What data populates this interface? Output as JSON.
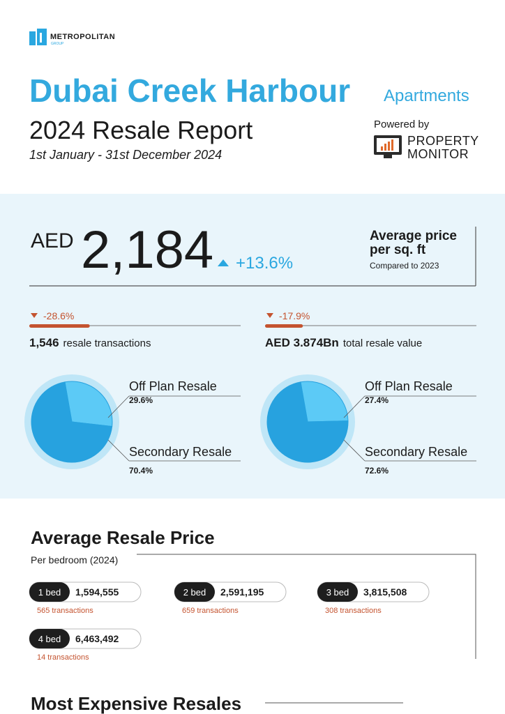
{
  "header": {
    "logo": "METROPOLITAN",
    "logo_sub": "GROUP",
    "title": "Dubai Creek Harbour",
    "tag": "Apartments",
    "report": "2024 Resale Report",
    "period": "1st January - 31st December 2024",
    "powered_by": "Powered by",
    "partner": [
      "PROPERTY",
      "MONITOR"
    ]
  },
  "price": {
    "currency": "AED",
    "value": "2,184",
    "change": "+13.6%",
    "label": [
      "Average price",
      "per sq. ft"
    ],
    "note": "Compared to 2023"
  },
  "stats": [
    {
      "change": {
        "value": -28.6,
        "label": "-28.6%"
      },
      "value": "1,546",
      "label": "resale transactions"
    },
    {
      "change": {
        "value": -17.9,
        "label": "-17.9%"
      },
      "value": "AED 3.874Bn",
      "label": "total resale value"
    }
  ],
  "pies": [
    {
      "labels": [
        "Off Plan Resale",
        "Secondary Resale"
      ],
      "values": [
        29.6,
        70.4
      ],
      "value_labels": [
        "29.6%",
        "70.4%"
      ]
    },
    {
      "labels": [
        "Off Plan Resale",
        "Secondary Resale"
      ],
      "values": [
        27.4,
        72.6
      ],
      "value_labels": [
        "27.4%",
        "72.6%"
      ]
    }
  ],
  "bedrooms": {
    "title": "Average Resale Price",
    "subtitle": "Per bedroom (2024)",
    "items": [
      {
        "name": "1 bed",
        "price": "1,594,555",
        "transactions": "565 transactions"
      },
      {
        "name": "2 bed",
        "price": "2,591,195",
        "transactions": "659 transactions"
      },
      {
        "name": "3 bed",
        "price": "3,815,508",
        "transactions": "308 transactions"
      },
      {
        "name": "4 bed",
        "price": "6,463,492",
        "transactions": "14 transactions"
      }
    ]
  },
  "next_section": "Most Expensive Resales"
}
